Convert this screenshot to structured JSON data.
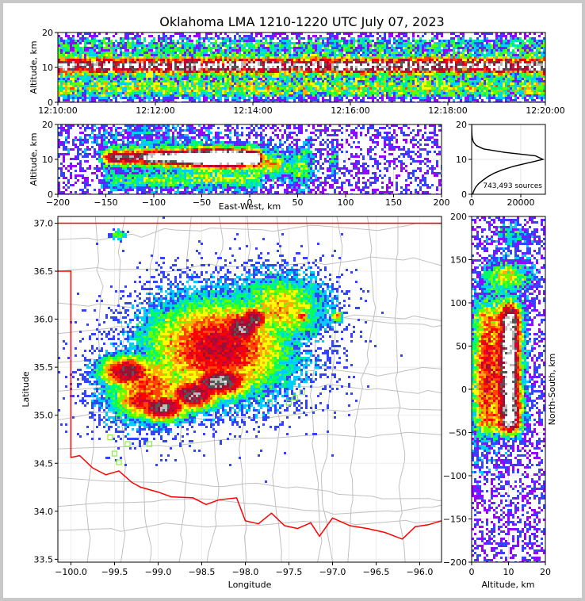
{
  "chart_data": {
    "type": "heatmap",
    "title": "Oklahoma LMA 1210-1220 UTC July 07, 2023",
    "colors": {
      "density_scale": [
        "#ffffff",
        "#9900ff",
        "#3344ff",
        "#00ccff",
        "#00ff66",
        "#66ff00",
        "#ffff00",
        "#ffaa00",
        "#ff4400",
        "#ff0000",
        "#cc0033",
        "#991133",
        "#555555",
        "#bbbbbb",
        "#ffffff"
      ],
      "state_border": "#ff0000",
      "county_lines": "#c0c0c0",
      "stations": "#88ee44"
    },
    "panels": {
      "time_altitude": {
        "ylabel": "Altitude, km",
        "ylim": [
          0,
          20
        ],
        "yticks": [
          "0",
          "10",
          "20"
        ],
        "xticks": [
          "12:10:00",
          "12:12:00",
          "12:14:00",
          "12:16:00",
          "12:18:00",
          "12:20:00"
        ]
      },
      "ew_altitude": {
        "xlabel": "East-West, km",
        "ylabel": "Altitude, km",
        "xlim": [
          -200,
          200
        ],
        "ylim": [
          0,
          20
        ],
        "xticks": [
          "−200",
          "−150",
          "−100",
          "−50",
          "0",
          "50",
          "100",
          "150",
          "200"
        ],
        "yticks": [
          "0",
          "10",
          "20"
        ]
      },
      "altitude_histogram": {
        "type": "line",
        "annotation": "743,493 sources",
        "xlim": [
          0,
          30000
        ],
        "ylim": [
          0,
          20
        ],
        "xticks": [
          "0",
          "20000"
        ],
        "yticks": [
          "0",
          "10",
          "20"
        ],
        "profile": [
          [
            0,
            400
          ],
          [
            1,
            900
          ],
          [
            2,
            1600
          ],
          [
            3,
            2800
          ],
          [
            4,
            4500
          ],
          [
            5,
            6500
          ],
          [
            6,
            9000
          ],
          [
            7,
            12500
          ],
          [
            8,
            17000
          ],
          [
            9,
            23000
          ],
          [
            10,
            29000
          ],
          [
            11,
            26000
          ],
          [
            12,
            13500
          ],
          [
            13,
            4800
          ],
          [
            14,
            1800
          ],
          [
            15,
            700
          ],
          [
            16,
            300
          ],
          [
            17,
            120
          ],
          [
            18,
            50
          ],
          [
            19,
            20
          ],
          [
            20,
            5
          ]
        ]
      },
      "plan_view": {
        "xlabel": "Longitude",
        "ylabel": "Latitude",
        "xlim": [
          -100.15,
          -95.75
        ],
        "ylim": [
          33.47,
          37.07
        ],
        "xticks": [
          "−100.0",
          "−99.5",
          "−99.0",
          "−98.5",
          "−98.0",
          "−97.5",
          "−97.0",
          "−96.5",
          "−96.0"
        ],
        "yticks": [
          "33.5",
          "34.0",
          "34.5",
          "35.0",
          "35.5",
          "36.0",
          "36.5",
          "37.0"
        ],
        "stations": [
          [
            -99.55,
            34.77
          ],
          [
            -99.5,
            34.6
          ],
          [
            -99.45,
            34.51
          ],
          [
            -99.35,
            34.7
          ],
          [
            -99.45,
            34.98
          ],
          [
            -99.1,
            34.7
          ],
          [
            -97.5,
            35.13
          ],
          [
            -97.43,
            35.18
          ],
          [
            -97.35,
            35.24
          ],
          [
            -97.72,
            35.14
          ]
        ]
      },
      "ns_altitude": {
        "xlabel": "Altitude, km",
        "ylabel": "North-South, km",
        "xlim": [
          0,
          20
        ],
        "ylim": [
          -200,
          200
        ],
        "xticks": [
          "0",
          "10",
          "20"
        ],
        "yticks": [
          "200",
          "150",
          "100",
          "50",
          "0",
          "−50",
          "−100",
          "−150",
          "−200"
        ]
      }
    }
  }
}
